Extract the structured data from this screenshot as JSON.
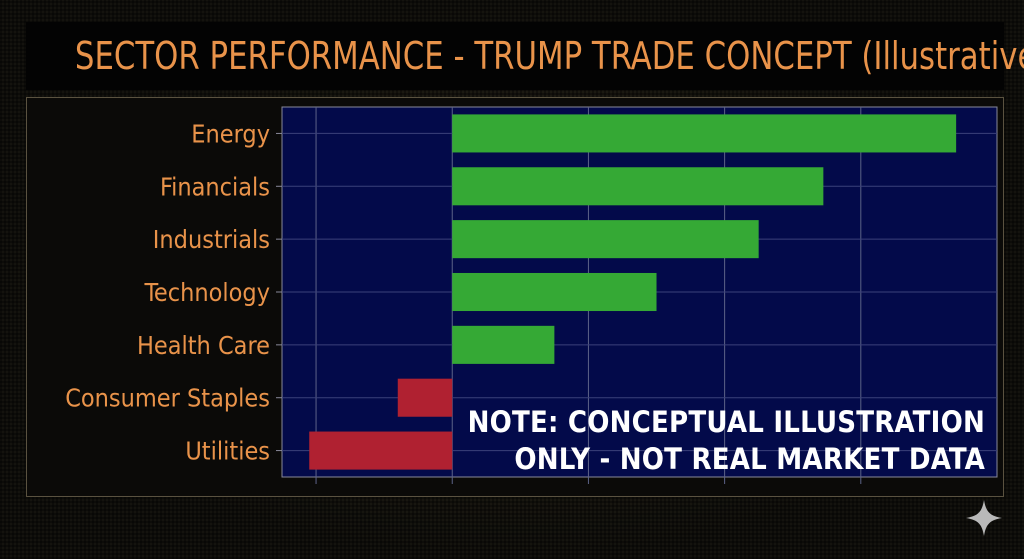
{
  "title": "SECTOR PERFORMANCE - TRUMP TRADE CONCEPT (Illustrative)",
  "note": {
    "line1": "NOTE: CONCEPTUAL ILLUSTRATION",
    "line2": "ONLY - NOT REAL MARKET DATA"
  },
  "colors": {
    "positive": "#35a935",
    "negative": "#b02131",
    "plot_background": "#030a4a",
    "label": "#e9934a",
    "title": "#e9934a"
  },
  "chart_data": {
    "type": "bar",
    "orientation": "horizontal",
    "categories": [
      "Energy",
      "Financials",
      "Industrials",
      "Technology",
      "Health Care",
      "Consumer Staples",
      "Utilities"
    ],
    "values": [
      7.4,
      5.45,
      4.5,
      3.0,
      1.5,
      -0.8,
      -2.1
    ],
    "xlim": [
      -2.5,
      8.0
    ],
    "xticks": [
      -2,
      0,
      2,
      4,
      6
    ],
    "title": "SECTOR PERFORMANCE - TRUMP TRADE CONCEPT (Illustrative)",
    "xlabel": "",
    "ylabel": "",
    "grid": true,
    "legend": "none"
  }
}
